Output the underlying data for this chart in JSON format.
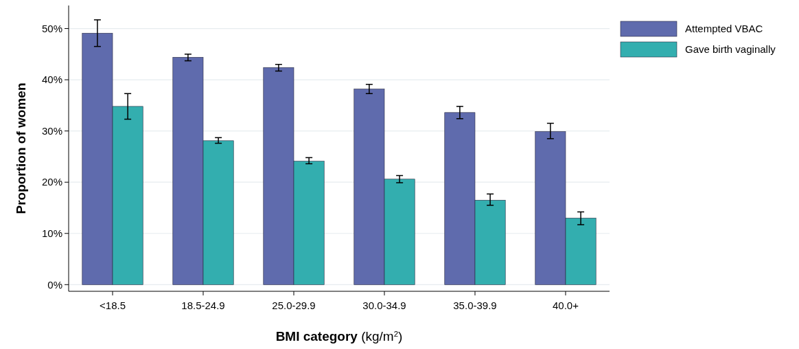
{
  "chart_data": {
    "type": "bar",
    "xlabel": "BMI category (kg/m$^{2}$)",
    "ylabel": "Proportion of women",
    "categories": [
      "<18.5",
      "18.5-24.9",
      "25.0-29.9",
      "30.0-34.9",
      "35.0-39.9",
      "40.0+"
    ],
    "series": [
      {
        "name": "Attempted VBAC",
        "color": "#5f6bad",
        "values": [
          49.1,
          44.4,
          42.4,
          38.2,
          33.6,
          29.9
        ],
        "errors": [
          [
            46.5,
            51.7
          ],
          [
            43.7,
            45.0
          ],
          [
            41.7,
            43.0
          ],
          [
            37.3,
            39.1
          ],
          [
            32.4,
            34.8
          ],
          [
            28.5,
            31.5
          ]
        ]
      },
      {
        "name": "Gave birth vaginally",
        "color": "#33aeaf",
        "values": [
          34.8,
          28.1,
          24.1,
          20.6,
          16.5,
          13.0
        ],
        "errors": [
          [
            32.3,
            37.3
          ],
          [
            27.6,
            28.7
          ],
          [
            23.6,
            24.8
          ],
          [
            19.9,
            21.3
          ],
          [
            15.5,
            17.7
          ],
          [
            11.7,
            14.2
          ]
        ]
      }
    ],
    "ylim": [
      -1.3,
      54.5
    ],
    "yticks": [
      {
        "value": 0,
        "label": "0%"
      },
      {
        "value": 10,
        "label": "10%"
      },
      {
        "value": 20,
        "label": "20%"
      },
      {
        "value": 30,
        "label": "30%"
      },
      {
        "value": 40,
        "label": "40%"
      },
      {
        "value": 50,
        "label": "50%"
      }
    ],
    "grid": "y",
    "legend": "top right"
  }
}
